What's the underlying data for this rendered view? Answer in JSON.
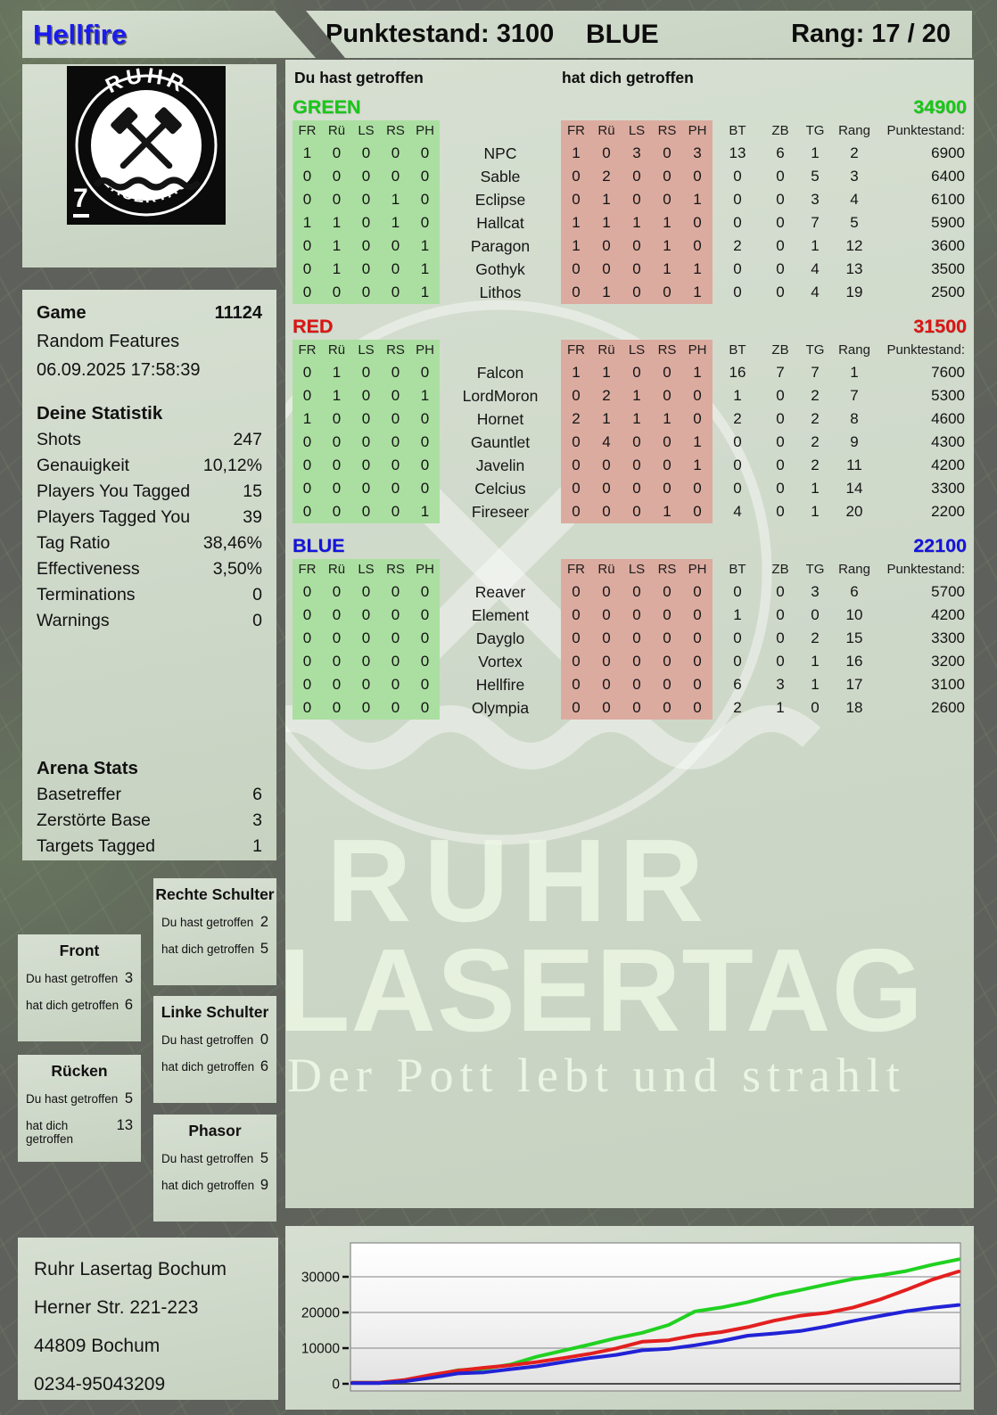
{
  "header": {
    "player": "Hellfire",
    "score_label": "Punktestand: 3100",
    "team": "BLUE",
    "rank_label": "Rang: 17 / 20"
  },
  "logo": {
    "top": "RUHR",
    "bottom": "LASERTAG",
    "badge": "7"
  },
  "game_info": {
    "label": "Game",
    "number": "11124",
    "mode": "Random Features",
    "datetime": "06.09.2025 17:58:39"
  },
  "your_stats": {
    "title": "Deine Statistik",
    "rows": [
      {
        "label": "Shots",
        "value": "247"
      },
      {
        "label": "Genauigkeit",
        "value": "10,12%"
      },
      {
        "label": "Players You Tagged",
        "value": "15"
      },
      {
        "label": "Players Tagged You",
        "value": "39"
      },
      {
        "label": "Tag Ratio",
        "value": "38,46%"
      },
      {
        "label": "Effectiveness",
        "value": "3,50%"
      },
      {
        "label": "Terminations",
        "value": "0"
      },
      {
        "label": "Warnings",
        "value": "0"
      }
    ]
  },
  "arena_stats": {
    "title": "Arena Stats",
    "rows": [
      {
        "label": "Basetreffer",
        "value": "6"
      },
      {
        "label": "Zerstörte Base",
        "value": "3"
      },
      {
        "label": "Targets Tagged",
        "value": "1"
      }
    ]
  },
  "scoreboard": {
    "you_header": "Du hast getroffen",
    "them_header": "hat dich getroffen",
    "hit_cols": [
      "FR",
      "Rü",
      "LS",
      "RS",
      "PH"
    ],
    "stat_cols": [
      "BT",
      "ZB",
      "TG",
      "Rang",
      "Punktestand:"
    ],
    "teams": [
      {
        "name": "GREEN",
        "color": "#18c818",
        "total": "34900",
        "players": [
          {
            "name": "NPC",
            "you": [
              1,
              0,
              0,
              0,
              0
            ],
            "them": [
              1,
              0,
              3,
              0,
              3
            ],
            "stats": [
              13,
              6,
              1,
              2,
              "6900"
            ]
          },
          {
            "name": "Sable",
            "you": [
              0,
              0,
              0,
              0,
              0
            ],
            "them": [
              0,
              2,
              0,
              0,
              0
            ],
            "stats": [
              0,
              0,
              5,
              3,
              "6400"
            ]
          },
          {
            "name": "Eclipse",
            "you": [
              0,
              0,
              0,
              1,
              0
            ],
            "them": [
              0,
              1,
              0,
              0,
              1
            ],
            "stats": [
              0,
              0,
              3,
              4,
              "6100"
            ]
          },
          {
            "name": "Hallcat",
            "you": [
              1,
              1,
              0,
              1,
              0
            ],
            "them": [
              1,
              1,
              1,
              1,
              0
            ],
            "stats": [
              0,
              0,
              7,
              5,
              "5900"
            ]
          },
          {
            "name": "Paragon",
            "you": [
              0,
              1,
              0,
              0,
              1
            ],
            "them": [
              1,
              0,
              0,
              1,
              0
            ],
            "stats": [
              2,
              0,
              1,
              12,
              "3600"
            ]
          },
          {
            "name": "Gothyk",
            "you": [
              0,
              1,
              0,
              0,
              1
            ],
            "them": [
              0,
              0,
              0,
              1,
              1
            ],
            "stats": [
              0,
              0,
              4,
              13,
              "3500"
            ]
          },
          {
            "name": "Lithos",
            "you": [
              0,
              0,
              0,
              0,
              1
            ],
            "them": [
              0,
              1,
              0,
              0,
              1
            ],
            "stats": [
              0,
              0,
              4,
              19,
              "2500"
            ]
          }
        ]
      },
      {
        "name": "RED",
        "color": "#dd1414",
        "total": "31500",
        "players": [
          {
            "name": "Falcon",
            "you": [
              0,
              1,
              0,
              0,
              0
            ],
            "them": [
              1,
              1,
              0,
              0,
              1
            ],
            "stats": [
              16,
              7,
              7,
              1,
              "7600"
            ]
          },
          {
            "name": "LordMoron",
            "you": [
              0,
              1,
              0,
              0,
              1
            ],
            "them": [
              0,
              2,
              1,
              0,
              0
            ],
            "stats": [
              1,
              0,
              2,
              7,
              "5300"
            ]
          },
          {
            "name": "Hornet",
            "you": [
              1,
              0,
              0,
              0,
              0
            ],
            "them": [
              2,
              1,
              1,
              1,
              0
            ],
            "stats": [
              2,
              0,
              2,
              8,
              "4600"
            ]
          },
          {
            "name": "Gauntlet",
            "you": [
              0,
              0,
              0,
              0,
              0
            ],
            "them": [
              0,
              4,
              0,
              0,
              1
            ],
            "stats": [
              0,
              0,
              2,
              9,
              "4300"
            ]
          },
          {
            "name": "Javelin",
            "you": [
              0,
              0,
              0,
              0,
              0
            ],
            "them": [
              0,
              0,
              0,
              0,
              1
            ],
            "stats": [
              0,
              0,
              2,
              11,
              "4200"
            ]
          },
          {
            "name": "Celcius",
            "you": [
              0,
              0,
              0,
              0,
              0
            ],
            "them": [
              0,
              0,
              0,
              0,
              0
            ],
            "stats": [
              0,
              0,
              1,
              14,
              "3300"
            ]
          },
          {
            "name": "Fireseer",
            "you": [
              0,
              0,
              0,
              0,
              1
            ],
            "them": [
              0,
              0,
              0,
              1,
              0
            ],
            "stats": [
              4,
              0,
              1,
              20,
              "2200"
            ]
          }
        ]
      },
      {
        "name": "BLUE",
        "color": "#1414dd",
        "total": "22100",
        "players": [
          {
            "name": "Reaver",
            "you": [
              0,
              0,
              0,
              0,
              0
            ],
            "them": [
              0,
              0,
              0,
              0,
              0
            ],
            "stats": [
              0,
              0,
              3,
              6,
              "5700"
            ]
          },
          {
            "name": "Element",
            "you": [
              0,
              0,
              0,
              0,
              0
            ],
            "them": [
              0,
              0,
              0,
              0,
              0
            ],
            "stats": [
              1,
              0,
              0,
              10,
              "4200"
            ]
          },
          {
            "name": "Dayglo",
            "you": [
              0,
              0,
              0,
              0,
              0
            ],
            "them": [
              0,
              0,
              0,
              0,
              0
            ],
            "stats": [
              0,
              0,
              2,
              15,
              "3300"
            ]
          },
          {
            "name": "Vortex",
            "you": [
              0,
              0,
              0,
              0,
              0
            ],
            "them": [
              0,
              0,
              0,
              0,
              0
            ],
            "stats": [
              0,
              0,
              1,
              16,
              "3200"
            ]
          },
          {
            "name": "Hellfire",
            "you": [
              0,
              0,
              0,
              0,
              0
            ],
            "them": [
              0,
              0,
              0,
              0,
              0
            ],
            "stats": [
              6,
              3,
              1,
              17,
              "3100"
            ]
          },
          {
            "name": "Olympia",
            "you": [
              0,
              0,
              0,
              0,
              0
            ],
            "them": [
              0,
              0,
              0,
              0,
              0
            ],
            "stats": [
              2,
              1,
              0,
              18,
              "2600"
            ]
          }
        ]
      }
    ]
  },
  "hit_zones": {
    "you_label": "Du hast getroffen",
    "them_label": "hat dich getroffen",
    "zones": [
      {
        "name": "Rechte Schulter",
        "you": "2",
        "them": "5"
      },
      {
        "name": "Front",
        "you": "3",
        "them": "6"
      },
      {
        "name": "Linke Schulter",
        "you": "0",
        "them": "6"
      },
      {
        "name": "Rücken",
        "you": "5",
        "them": "13"
      },
      {
        "name": "Phasor",
        "you": "5",
        "them": "9"
      }
    ]
  },
  "address": {
    "lines": [
      "Ruhr Lasertag Bochum",
      "Herner Str. 221-223",
      "44809 Bochum",
      "0234-95043209"
    ]
  },
  "watermark": {
    "line1": "RUHR",
    "line2": "LASERTAG",
    "slogan": "Der Pott lebt und strahlt"
  },
  "chart_data": {
    "type": "line",
    "title": "",
    "xlabel": "",
    "ylabel": "",
    "x_unit": "game progress (evenly spaced samples)",
    "yticks": [
      0,
      10000,
      20000,
      30000
    ],
    "ylim": [
      0,
      39000
    ],
    "grid": true,
    "legend": "none",
    "series": [
      {
        "name": "GREEN",
        "color": "#21d121",
        "values": [
          300,
          300,
          900,
          2200,
          3800,
          4200,
          5400,
          7600,
          9300,
          11000,
          12800,
          14300,
          16500,
          20300,
          21400,
          22900,
          24800,
          26300,
          27900,
          29400,
          30400,
          31600,
          33400,
          34900
        ]
      },
      {
        "name": "RED",
        "color": "#e31f1f",
        "values": [
          300,
          300,
          1100,
          2500,
          3700,
          4500,
          5200,
          6100,
          7200,
          8400,
          9900,
          11800,
          12200,
          13600,
          14500,
          15900,
          17700,
          19100,
          19900,
          21400,
          23600,
          26300,
          29200,
          31500
        ]
      },
      {
        "name": "BLUE",
        "color": "#2222d6",
        "values": [
          200,
          200,
          700,
          1700,
          2900,
          3200,
          4100,
          4900,
          6100,
          7200,
          8100,
          9400,
          9800,
          10800,
          12000,
          13500,
          14100,
          14800,
          16100,
          17600,
          19000,
          20300,
          21300,
          22100
        ]
      }
    ]
  }
}
